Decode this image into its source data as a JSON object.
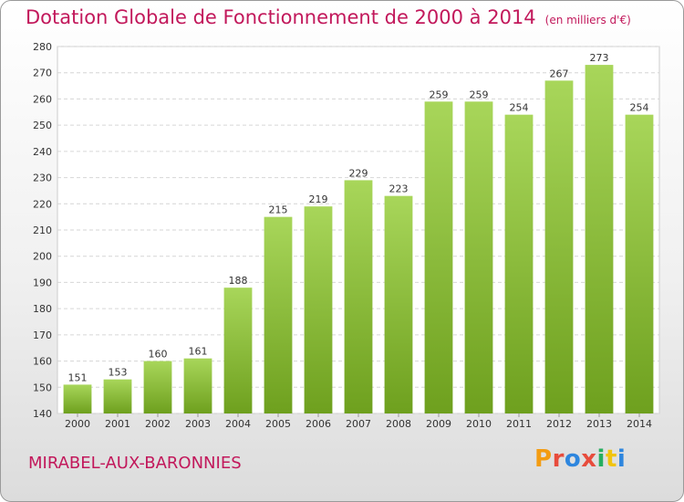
{
  "title": "Dotation Globale de Fonctionnement de 2000 à 2014",
  "unit": "(en milliers d'€)",
  "commune": "MIRABEL-AUX-BARONNIES",
  "logo": "Proxiti",
  "colors": {
    "title": "#c2185b",
    "bar_light": "#a8d65a",
    "bar_dark": "#6ea01e"
  },
  "chart_data": {
    "type": "bar",
    "categories": [
      "2000",
      "2001",
      "2002",
      "2003",
      "2004",
      "2005",
      "2006",
      "2007",
      "2008",
      "2009",
      "2010",
      "2011",
      "2012",
      "2013",
      "2014"
    ],
    "values": [
      151,
      153,
      160,
      161,
      188,
      215,
      219,
      229,
      223,
      259,
      259,
      254,
      267,
      273,
      254
    ],
    "ylim": [
      140,
      280
    ],
    "yticks": [
      140,
      150,
      160,
      170,
      180,
      190,
      200,
      210,
      220,
      230,
      240,
      250,
      260,
      270,
      280
    ],
    "grid": true
  }
}
